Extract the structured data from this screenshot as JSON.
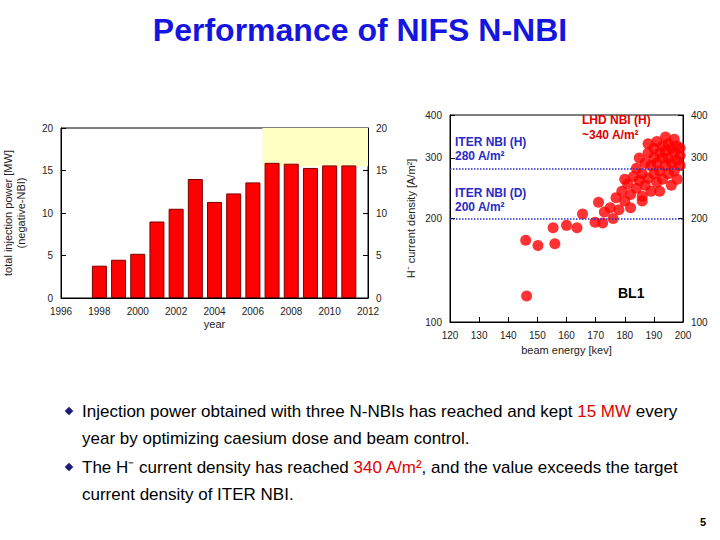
{
  "title": "Performance of NIFS N-NBI",
  "bullets": [
    [
      {
        "text": "Injection power obtained with three N-NBIs has reached and kept "
      },
      {
        "text": "15 MW",
        "color": "#e00000"
      },
      {
        "text": " every year by optimizing caesium dose and beam control."
      }
    ],
    [
      {
        "text": "The H⁻ current density has reached "
      },
      {
        "text": "340 A/m²",
        "color": "#e00000"
      },
      {
        "text": ", and the value exceeds the target current density of ITER NBI."
      }
    ]
  ],
  "page": "5",
  "chart_data": [
    {
      "type": "bar",
      "x": [
        1998,
        1999,
        2000,
        2001,
        2002,
        2003,
        2004,
        2005,
        2006,
        2007,
        2008,
        2009,
        2010,
        2011
      ],
      "values": [
        3.8,
        4.5,
        5.2,
        9.0,
        10.5,
        14.0,
        11.3,
        12.3,
        13.6,
        15.9,
        15.8,
        15.3,
        15.6,
        15.6
      ],
      "color": "#ff0000",
      "xlabel": "year",
      "ylabel": "total injection power [MW]\n(negative-NBI)",
      "xlim": [
        1996,
        2012
      ],
      "xticks": [
        1996,
        1998,
        2000,
        2002,
        2004,
        2006,
        2008,
        2010,
        2012
      ],
      "ylim": [
        0,
        20
      ],
      "yticks": [
        0,
        5,
        10,
        15,
        20
      ],
      "grid": false,
      "highlight": {
        "xlim": [
          2006.5,
          2012
        ],
        "ylim": [
          15.5,
          20
        ],
        "color": "#ffffc4"
      }
    },
    {
      "type": "scatter",
      "x": [
        146.3,
        146,
        150.2,
        155.4,
        156,
        160,
        163.6,
        165.5,
        169.8,
        172.4,
        173,
        171,
        175,
        176,
        177,
        178,
        179,
        180,
        181,
        182,
        183,
        184,
        184,
        185,
        185,
        186,
        186,
        187,
        187,
        188,
        188,
        189,
        189,
        190,
        190,
        190,
        191,
        191,
        191,
        192,
        192,
        192,
        193,
        193,
        193,
        194,
        194,
        194,
        195,
        195,
        195,
        196,
        196,
        196,
        197,
        197,
        197,
        198,
        198,
        198,
        199,
        199,
        199,
        182,
        186,
        180,
        188
      ],
      "values": [
        119,
        173,
        167,
        188,
        169,
        191,
        188,
        206,
        195,
        194,
        209,
        223,
        215,
        200,
        230,
        212,
        240,
        225,
        252,
        235,
        265,
        245,
        280,
        258,
        300,
        270,
        232,
        290,
        250,
        310,
        262,
        285,
        240,
        300,
        270,
        320,
        255,
        290,
        335,
        275,
        310,
        240,
        300,
        325,
        260,
        285,
        345,
        315,
        270,
        300,
        330,
        290,
        250,
        320,
        310,
        275,
        340,
        295,
        325,
        260,
        305,
        285,
        320,
        215,
        225,
        260,
        330
      ],
      "color": "#ff0000",
      "xlabel": "beam energy [kev]",
      "ylabel": "H⁻ current density [A/m²]",
      "xlim": [
        120,
        200
      ],
      "xticks": [
        120,
        130,
        140,
        150,
        160,
        170,
        180,
        190,
        200
      ],
      "ylim": [
        100,
        400
      ],
      "yticks": [
        100,
        200,
        300,
        400
      ],
      "log": "y",
      "grid": false,
      "ref_lines": [
        {
          "value": 280,
          "label": "ITER NBI (H)\n280 A/m²",
          "color": "#2a2ac8"
        },
        {
          "value": 200,
          "label": "ITER NBI (D)\n200 A/m²",
          "color": "#2a2ac8"
        }
      ],
      "annotations": [
        {
          "text": "LHD NBI (H)\n~340 A/m²",
          "color": "#e00000"
        },
        {
          "text": "BL1",
          "color": "#000000"
        }
      ]
    }
  ]
}
